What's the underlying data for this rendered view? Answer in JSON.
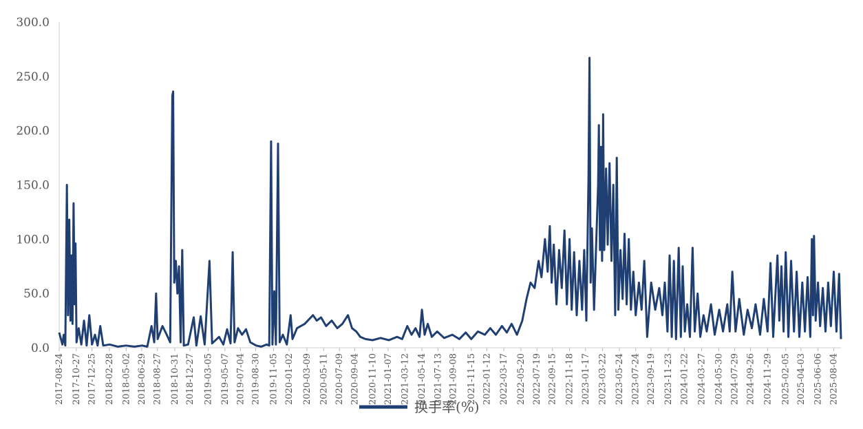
{
  "chart_data": {
    "type": "line",
    "title": "",
    "xlabel": "",
    "ylabel": "",
    "ylim": [
      0,
      300
    ],
    "yticks": [
      "0.0",
      "50.0",
      "100.0",
      "150.0",
      "200.0",
      "250.0",
      "300.0"
    ],
    "x_range": [
      "2017-08-24",
      "2025-08-31"
    ],
    "xticks": [
      "2017-08-24",
      "2017-10-27",
      "2017-12-25",
      "2018-02-28",
      "2018-05-02",
      "2018-06-29",
      "2018-08-27",
      "2018-10-31",
      "2018-12-27",
      "2019-03-05",
      "2019-05-07",
      "2019-07-04",
      "2019-08-30",
      "2019-11-05",
      "2020-01-02",
      "2020-03-09",
      "2020-05-11",
      "2020-07-09",
      "2020-09-04",
      "2020-11-10",
      "2021-01-07",
      "2021-03-12",
      "2021-05-14",
      "2021-07-13",
      "2021-09-08",
      "2021-11-15",
      "2022-01-12",
      "2022-03-17",
      "2022-05-20",
      "2022-07-19",
      "2022-09-15",
      "2022-11-18",
      "2023-01-17",
      "2023-03-22",
      "2023-05-24",
      "2023-07-24",
      "2023-09-19",
      "2023-11-23",
      "2024-01-22",
      "2024-03-27",
      "2024-05-30",
      "2024-07-29",
      "2024-09-26",
      "2024-11-29",
      "2025-02-05",
      "2025-04-03",
      "2025-06-06",
      "2025-08-04"
    ],
    "grid": false,
    "legend_position": "bottom",
    "series": [
      {
        "name": "换手率(%)",
        "color": "#1f3f73",
        "points": [
          [
            "2017-08-24",
            14
          ],
          [
            "2017-09-05",
            3
          ],
          [
            "2017-09-10",
            12
          ],
          [
            "2017-09-16",
            2
          ],
          [
            "2017-09-22",
            150
          ],
          [
            "2017-09-26",
            30
          ],
          [
            "2017-10-01",
            118
          ],
          [
            "2017-10-05",
            25
          ],
          [
            "2017-10-09",
            85
          ],
          [
            "2017-10-13",
            22
          ],
          [
            "2017-10-17",
            133
          ],
          [
            "2017-10-21",
            40
          ],
          [
            "2017-10-24",
            96
          ],
          [
            "2017-10-28",
            5
          ],
          [
            "2017-11-05",
            18
          ],
          [
            "2017-11-15",
            3
          ],
          [
            "2017-11-25",
            25
          ],
          [
            "2017-12-05",
            2
          ],
          [
            "2017-12-15",
            30
          ],
          [
            "2017-12-25",
            3
          ],
          [
            "2018-01-05",
            12
          ],
          [
            "2018-01-15",
            2
          ],
          [
            "2018-01-25",
            20
          ],
          [
            "2018-02-05",
            2
          ],
          [
            "2018-03-01",
            3
          ],
          [
            "2018-04-01",
            1
          ],
          [
            "2018-05-01",
            2
          ],
          [
            "2018-06-01",
            1
          ],
          [
            "2018-07-01",
            2
          ],
          [
            "2018-07-20",
            1
          ],
          [
            "2018-08-05",
            20
          ],
          [
            "2018-08-15",
            5
          ],
          [
            "2018-08-22",
            50
          ],
          [
            "2018-08-28",
            8
          ],
          [
            "2018-09-15",
            20
          ],
          [
            "2018-10-01",
            12
          ],
          [
            "2018-10-14",
            5
          ],
          [
            "2018-10-22",
            232
          ],
          [
            "2018-10-25",
            236
          ],
          [
            "2018-10-29",
            60
          ],
          [
            "2018-11-04",
            80
          ],
          [
            "2018-11-10",
            50
          ],
          [
            "2018-11-16",
            75
          ],
          [
            "2018-11-22",
            5
          ],
          [
            "2018-11-28",
            90
          ],
          [
            "2018-12-04",
            2
          ],
          [
            "2018-12-20",
            3
          ],
          [
            "2019-01-10",
            28
          ],
          [
            "2019-01-20",
            2
          ],
          [
            "2019-02-05",
            29
          ],
          [
            "2019-02-20",
            3
          ],
          [
            "2019-03-10",
            80
          ],
          [
            "2019-03-20",
            4
          ],
          [
            "2019-04-15",
            10
          ],
          [
            "2019-05-01",
            3
          ],
          [
            "2019-05-15",
            17
          ],
          [
            "2019-05-28",
            4
          ],
          [
            "2019-06-05",
            88
          ],
          [
            "2019-06-12",
            5
          ],
          [
            "2019-06-25",
            18
          ],
          [
            "2019-07-10",
            12
          ],
          [
            "2019-07-25",
            17
          ],
          [
            "2019-08-10",
            5
          ],
          [
            "2019-09-01",
            2
          ],
          [
            "2019-09-20",
            1
          ],
          [
            "2019-10-10",
            3
          ],
          [
            "2019-10-20",
            2
          ],
          [
            "2019-10-27",
            190
          ],
          [
            "2019-11-01",
            3
          ],
          [
            "2019-11-08",
            52
          ],
          [
            "2019-11-14",
            3
          ],
          [
            "2019-11-22",
            188
          ],
          [
            "2019-11-28",
            5
          ],
          [
            "2019-12-10",
            12
          ],
          [
            "2019-12-25",
            3
          ],
          [
            "2020-01-08",
            30
          ],
          [
            "2020-01-15",
            8
          ],
          [
            "2020-02-01",
            18
          ],
          [
            "2020-03-01",
            22
          ],
          [
            "2020-04-01",
            30
          ],
          [
            "2020-04-15",
            25
          ],
          [
            "2020-05-01",
            28
          ],
          [
            "2020-05-20",
            20
          ],
          [
            "2020-06-10",
            25
          ],
          [
            "2020-07-01",
            18
          ],
          [
            "2020-07-20",
            22
          ],
          [
            "2020-08-10",
            30
          ],
          [
            "2020-08-25",
            18
          ],
          [
            "2020-09-10",
            15
          ],
          [
            "2020-09-25",
            10
          ],
          [
            "2020-10-15",
            8
          ],
          [
            "2020-11-10",
            7
          ],
          [
            "2020-12-10",
            9
          ],
          [
            "2021-01-10",
            7
          ],
          [
            "2021-02-10",
            10
          ],
          [
            "2021-03-01",
            8
          ],
          [
            "2021-03-20",
            20
          ],
          [
            "2021-04-05",
            12
          ],
          [
            "2021-04-20",
            18
          ],
          [
            "2021-05-05",
            10
          ],
          [
            "2021-05-14",
            35
          ],
          [
            "2021-05-24",
            12
          ],
          [
            "2021-06-05",
            22
          ],
          [
            "2021-06-20",
            10
          ],
          [
            "2021-07-10",
            15
          ],
          [
            "2021-08-05",
            9
          ],
          [
            "2021-09-05",
            12
          ],
          [
            "2021-10-01",
            8
          ],
          [
            "2021-10-25",
            14
          ],
          [
            "2021-11-15",
            8
          ],
          [
            "2021-12-10",
            15
          ],
          [
            "2022-01-05",
            12
          ],
          [
            "2022-01-25",
            18
          ],
          [
            "2022-02-15",
            12
          ],
          [
            "2022-03-10",
            20
          ],
          [
            "2022-03-28",
            14
          ],
          [
            "2022-04-15",
            22
          ],
          [
            "2022-05-05",
            12
          ],
          [
            "2022-05-25",
            25
          ],
          [
            "2022-06-10",
            45
          ],
          [
            "2022-06-25",
            60
          ],
          [
            "2022-07-10",
            55
          ],
          [
            "2022-07-25",
            80
          ],
          [
            "2022-08-05",
            65
          ],
          [
            "2022-08-18",
            100
          ],
          [
            "2022-08-28",
            70
          ],
          [
            "2022-09-05",
            112
          ],
          [
            "2022-09-12",
            60
          ],
          [
            "2022-09-20",
            95
          ],
          [
            "2022-09-30",
            40
          ],
          [
            "2022-10-10",
            90
          ],
          [
            "2022-10-20",
            55
          ],
          [
            "2022-10-30",
            108
          ],
          [
            "2022-11-08",
            40
          ],
          [
            "2022-11-18",
            100
          ],
          [
            "2022-11-26",
            35
          ],
          [
            "2022-12-05",
            88
          ],
          [
            "2022-12-15",
            30
          ],
          [
            "2022-12-25",
            80
          ],
          [
            "2023-01-04",
            35
          ],
          [
            "2023-01-12",
            90
          ],
          [
            "2023-01-20",
            25
          ],
          [
            "2023-01-28",
            155
          ],
          [
            "2023-02-01",
            267
          ],
          [
            "2023-02-05",
            60
          ],
          [
            "2023-02-10",
            110
          ],
          [
            "2023-02-18",
            35
          ],
          [
            "2023-02-25",
            90
          ],
          [
            "2023-03-05",
            150
          ],
          [
            "2023-03-08",
            205
          ],
          [
            "2023-03-12",
            90
          ],
          [
            "2023-03-16",
            185
          ],
          [
            "2023-03-20",
            80
          ],
          [
            "2023-03-24",
            215
          ],
          [
            "2023-03-28",
            90
          ],
          [
            "2023-04-04",
            165
          ],
          [
            "2023-04-10",
            95
          ],
          [
            "2023-04-17",
            170
          ],
          [
            "2023-04-24",
            80
          ],
          [
            "2023-05-01",
            150
          ],
          [
            "2023-05-08",
            30
          ],
          [
            "2023-05-14",
            175
          ],
          [
            "2023-05-20",
            35
          ],
          [
            "2023-05-28",
            90
          ],
          [
            "2023-06-05",
            45
          ],
          [
            "2023-06-12",
            105
          ],
          [
            "2023-06-20",
            40
          ],
          [
            "2023-06-28",
            100
          ],
          [
            "2023-07-06",
            35
          ],
          [
            "2023-07-15",
            70
          ],
          [
            "2023-07-24",
            30
          ],
          [
            "2023-08-05",
            60
          ],
          [
            "2023-08-15",
            35
          ],
          [
            "2023-08-25",
            80
          ],
          [
            "2023-09-05",
            10
          ],
          [
            "2023-09-20",
            60
          ],
          [
            "2023-10-05",
            35
          ],
          [
            "2023-10-20",
            55
          ],
          [
            "2023-11-01",
            30
          ],
          [
            "2023-11-10",
            60
          ],
          [
            "2023-11-20",
            15
          ],
          [
            "2023-11-28",
            85
          ],
          [
            "2023-12-06",
            10
          ],
          [
            "2023-12-14",
            80
          ],
          [
            "2023-12-22",
            8
          ],
          [
            "2024-01-01",
            92
          ],
          [
            "2024-01-09",
            10
          ],
          [
            "2024-01-16",
            75
          ],
          [
            "2024-01-24",
            15
          ],
          [
            "2024-02-02",
            40
          ],
          [
            "2024-02-12",
            10
          ],
          [
            "2024-02-22",
            92
          ],
          [
            "2024-03-01",
            15
          ],
          [
            "2024-03-12",
            50
          ],
          [
            "2024-03-22",
            10
          ],
          [
            "2024-04-03",
            30
          ],
          [
            "2024-04-15",
            15
          ],
          [
            "2024-05-01",
            40
          ],
          [
            "2024-05-15",
            12
          ],
          [
            "2024-06-01",
            35
          ],
          [
            "2024-06-15",
            15
          ],
          [
            "2024-07-01",
            40
          ],
          [
            "2024-07-10",
            15
          ],
          [
            "2024-07-20",
            70
          ],
          [
            "2024-08-01",
            15
          ],
          [
            "2024-08-15",
            45
          ],
          [
            "2024-09-01",
            12
          ],
          [
            "2024-09-15",
            35
          ],
          [
            "2024-10-01",
            18
          ],
          [
            "2024-10-15",
            40
          ],
          [
            "2024-11-01",
            12
          ],
          [
            "2024-11-15",
            45
          ],
          [
            "2024-11-29",
            15
          ],
          [
            "2024-12-10",
            78
          ],
          [
            "2024-12-20",
            10
          ],
          [
            "2025-01-05",
            85
          ],
          [
            "2025-01-12",
            25
          ],
          [
            "2025-01-20",
            75
          ],
          [
            "2025-01-28",
            15
          ],
          [
            "2025-02-05",
            88
          ],
          [
            "2025-02-15",
            10
          ],
          [
            "2025-02-25",
            80
          ],
          [
            "2025-03-08",
            15
          ],
          [
            "2025-03-18",
            70
          ],
          [
            "2025-03-28",
            10
          ],
          [
            "2025-04-08",
            60
          ],
          [
            "2025-04-18",
            15
          ],
          [
            "2025-04-28",
            65
          ],
          [
            "2025-05-08",
            10
          ],
          [
            "2025-05-14",
            100
          ],
          [
            "2025-05-18",
            30
          ],
          [
            "2025-05-22",
            103
          ],
          [
            "2025-05-28",
            25
          ],
          [
            "2025-06-06",
            60
          ],
          [
            "2025-06-14",
            20
          ],
          [
            "2025-06-24",
            55
          ],
          [
            "2025-07-04",
            15
          ],
          [
            "2025-07-14",
            60
          ],
          [
            "2025-07-24",
            20
          ],
          [
            "2025-08-04",
            70
          ],
          [
            "2025-08-14",
            15
          ],
          [
            "2025-08-24",
            68
          ],
          [
            "2025-08-31",
            8
          ]
        ]
      }
    ]
  }
}
